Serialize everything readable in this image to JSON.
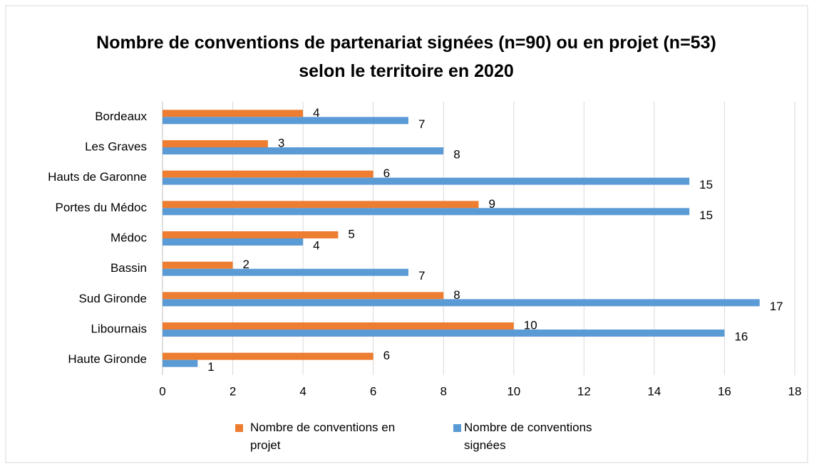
{
  "chart_data": {
    "type": "bar",
    "orientation": "horizontal",
    "title": "Nombre de conventions de partenariat signées (n=90) ou en projet (n=53) selon le territoire en 2020",
    "categories": [
      "Bordeaux",
      "Les Graves",
      "Hauts de Garonne",
      "Portes du Médoc",
      "Médoc",
      "Bassin",
      "Sud Gironde",
      "Libournais",
      "Haute Gironde"
    ],
    "series": [
      {
        "name": "Nombre de conventions en projet",
        "color": "#ed7d31",
        "values": [
          4,
          3,
          6,
          9,
          5,
          2,
          8,
          10,
          6
        ]
      },
      {
        "name": "Nombre de conventions signées",
        "color": "#5b9bd5",
        "values": [
          7,
          8,
          15,
          15,
          4,
          7,
          17,
          16,
          1
        ]
      }
    ],
    "xlim": [
      0,
      18
    ],
    "xticks": [
      0,
      2,
      4,
      6,
      8,
      10,
      12,
      14,
      16,
      18
    ],
    "grid": true,
    "legend": "bottom"
  }
}
